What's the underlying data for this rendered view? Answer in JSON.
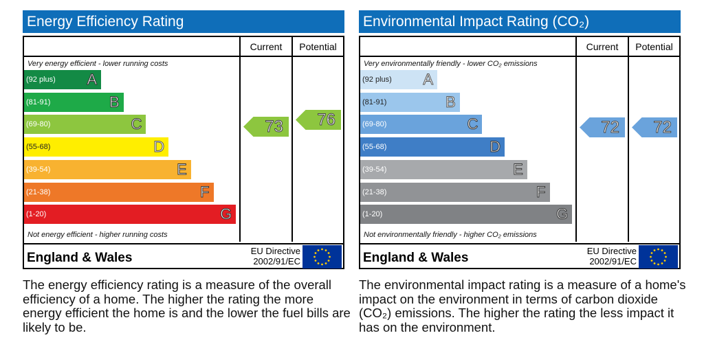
{
  "panels": [
    {
      "title": "Energy Efficiency Rating",
      "col_current": "Current",
      "col_potential": "Potential",
      "top_note": "Very energy efficient - lower running costs",
      "bottom_note": "Not energy efficient - higher running costs",
      "bands": [
        {
          "range": "(92 plus)",
          "letter": "A",
          "color": "#138a45"
        },
        {
          "range": "(81-91)",
          "letter": "B",
          "color": "#1eaa48"
        },
        {
          "range": "(69-80)",
          "letter": "C",
          "color": "#8dc63f"
        },
        {
          "range": "(55-68)",
          "letter": "D",
          "color": "#ffee00"
        },
        {
          "range": "(39-54)",
          "letter": "E",
          "color": "#f8b230"
        },
        {
          "range": "(21-38)",
          "letter": "F",
          "color": "#ee7828"
        },
        {
          "range": "(1-20)",
          "letter": "G",
          "color": "#e31d23"
        }
      ],
      "current": "73",
      "potential": "76",
      "current_color": "#8dc63f",
      "potential_color": "#8dc63f",
      "region": "England & Wales",
      "eu_line1": "EU Directive",
      "eu_line2": "2002/91/EC",
      "description": "The energy efficiency rating is a measure of the overall efficiency of a home. The higher the rating the more energy efficient the home is and the lower the fuel bills are likely to be."
    },
    {
      "title": "Environmental Impact Rating (CO₂)",
      "col_current": "Current",
      "col_potential": "Potential",
      "top_note": "Very environmentally friendly - lower CO₂ emissions",
      "bottom_note": "Not environmentally friendly - higher CO₂ emissions",
      "bands": [
        {
          "range": "(92 plus)",
          "letter": "A",
          "color": "#cde3f5"
        },
        {
          "range": "(81-91)",
          "letter": "B",
          "color": "#9bc6ec"
        },
        {
          "range": "(69-80)",
          "letter": "C",
          "color": "#6aa3dc"
        },
        {
          "range": "(55-68)",
          "letter": "D",
          "color": "#3f7ec6"
        },
        {
          "range": "(39-54)",
          "letter": "E",
          "color": "#a7a9ac"
        },
        {
          "range": "(21-38)",
          "letter": "F",
          "color": "#919396"
        },
        {
          "range": "(1-20)",
          "letter": "G",
          "color": "#808285"
        }
      ],
      "current": "72",
      "potential": "72",
      "current_color": "#6aa3dc",
      "potential_color": "#6aa3dc",
      "region": "England & Wales",
      "eu_line1": "EU Directive",
      "eu_line2": "2002/91/EC",
      "description": "The environmental impact rating is a measure of a home's impact on the environment in terms of carbon dioxide (CO₂) emissions. The higher the rating the less impact it has on the environment."
    }
  ]
}
